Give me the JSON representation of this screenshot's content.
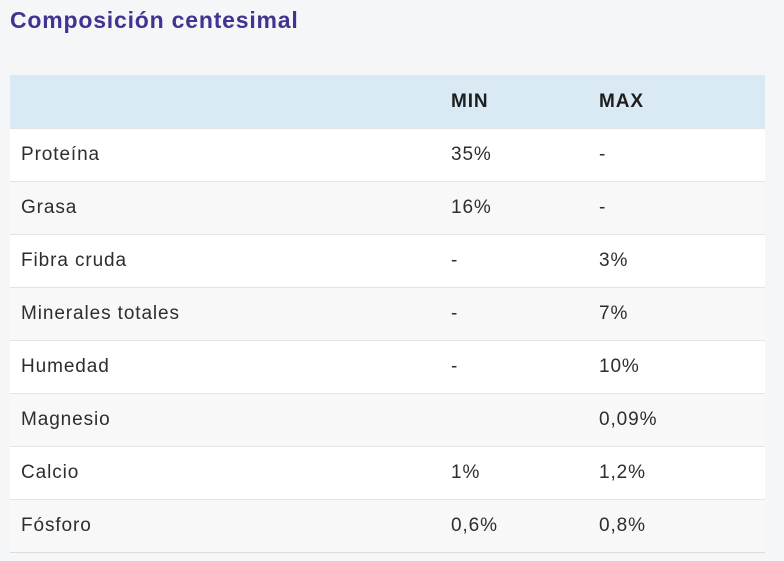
{
  "page": {
    "title": "Composición centesimal"
  },
  "table": {
    "header": {
      "label": "",
      "min": "MIN",
      "max": "MAX"
    },
    "rows": [
      {
        "label": "Proteína",
        "min": "35%",
        "max": "-"
      },
      {
        "label": "Grasa",
        "min": "16%",
        "max": "-"
      },
      {
        "label": "Fibra cruda",
        "min": "-",
        "max": "3%"
      },
      {
        "label": "Minerales totales",
        "min": "-",
        "max": "7%"
      },
      {
        "label": "Humedad",
        "min": "-",
        "max": "10%"
      },
      {
        "label": "Magnesio",
        "min": "",
        "max": "0,09%"
      },
      {
        "label": "Calcio",
        "min": "1%",
        "max": "1,2%"
      },
      {
        "label": "Fósforo",
        "min": "0,6%",
        "max": "0,8%"
      }
    ]
  },
  "colors": {
    "title_accent": "#3d3591",
    "header_bg": "#d9eaf5",
    "row_alt_bg": "#f8f8f8",
    "page_bg": "#f5f6f7",
    "body_text": "#2d2d2d"
  }
}
